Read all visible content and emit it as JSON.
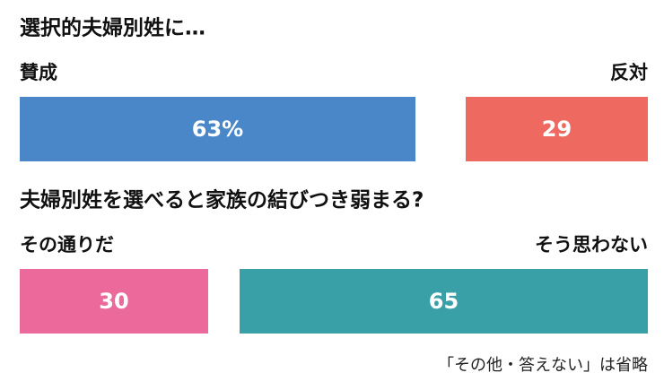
{
  "chart_data": [
    {
      "type": "bar",
      "title": "選択的夫婦別姓に…",
      "xlim": [
        0,
        100
      ],
      "series": [
        {
          "name": "賛成",
          "color": "#4a87c9",
          "values": [
            63
          ],
          "value_labels": [
            "63%"
          ]
        },
        {
          "name": "反対",
          "color": "#ee6a61",
          "values": [
            29
          ]
        }
      ]
    },
    {
      "type": "bar",
      "title": "夫婦別姓を選べると家族の結びつき弱まる?",
      "xlim": [
        0,
        100
      ],
      "series": [
        {
          "name": "その通りだ",
          "color": "#ec6a9b",
          "values": [
            30
          ]
        },
        {
          "name": "そう思わない",
          "color": "#38a0a6",
          "values": [
            65
          ]
        }
      ],
      "annotation": "「その他・答えない」は省略"
    }
  ]
}
